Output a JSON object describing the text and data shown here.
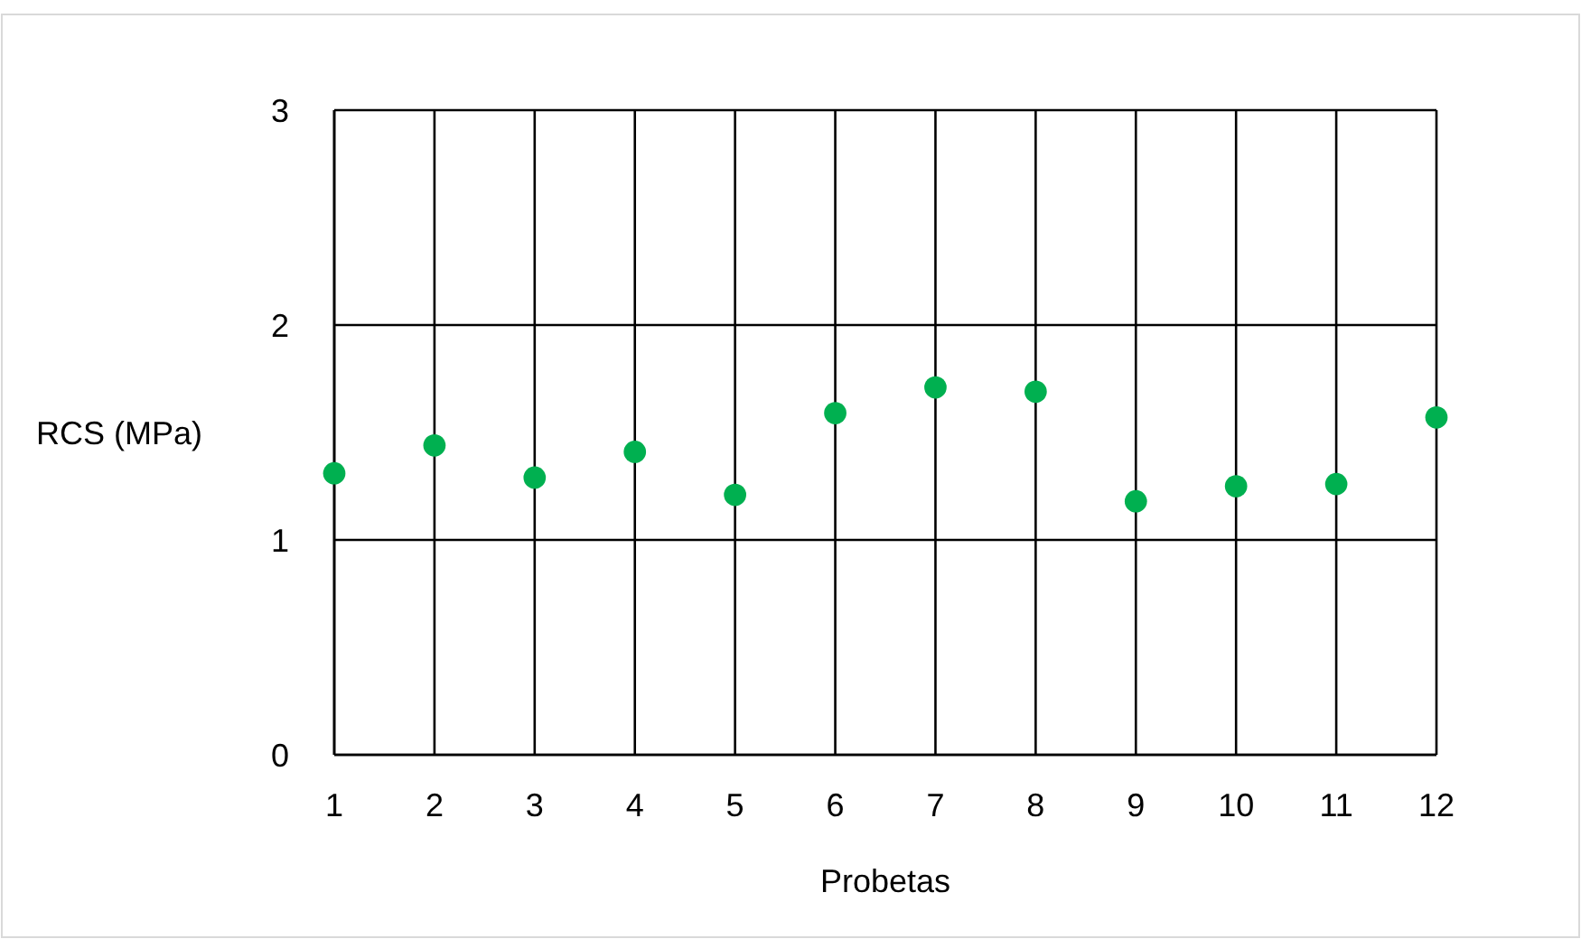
{
  "chart_data": {
    "type": "scatter",
    "xlabel": "Probetas",
    "ylabel": "RCS (MPa)",
    "x": [
      1,
      2,
      3,
      4,
      5,
      6,
      7,
      8,
      9,
      10,
      11,
      12
    ],
    "series": [
      {
        "color": "#00b050",
        "values": [
          1.31,
          1.44,
          1.29,
          1.41,
          1.21,
          1.59,
          1.71,
          1.69,
          1.18,
          1.25,
          1.26,
          1.57
        ]
      }
    ],
    "xlim": [
      1,
      12
    ],
    "xticks": [
      1,
      2,
      3,
      4,
      5,
      6,
      7,
      8,
      9,
      10,
      11,
      12
    ],
    "ylim": [
      0,
      3
    ],
    "yticks": [
      0,
      1,
      2,
      3
    ],
    "grid": true,
    "marker": "circle"
  }
}
